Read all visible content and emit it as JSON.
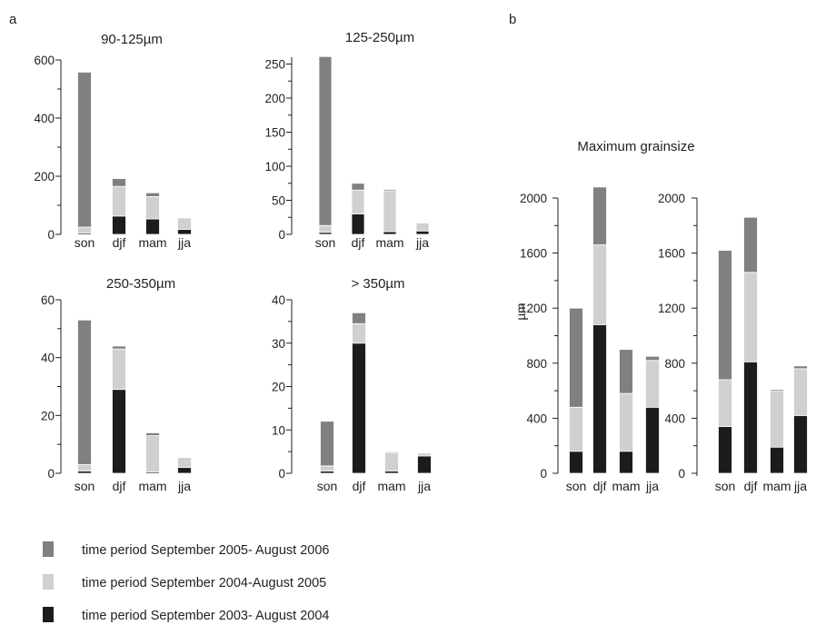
{
  "panel_labels": {
    "a": "a",
    "b": "b"
  },
  "colors": {
    "2005-2006": "#808080",
    "2004-2005": "#d0d0d0",
    "2003-2004": "#1c1c1c"
  },
  "legend": [
    {
      "key": "2005-2006",
      "label": "time period September 2005- August 2006"
    },
    {
      "key": "2004-2005",
      "label": "time period September 2004-August 2005"
    },
    {
      "key": "2003-2004",
      "label": "time period September 2003- August 2004"
    }
  ],
  "chart_data": [
    {
      "id": "c1",
      "type": "bar",
      "stacked": true,
      "title": "90-125µm",
      "categories": [
        "son",
        "djf",
        "mam",
        "jja"
      ],
      "ylim": [
        0,
        600
      ],
      "yticks": [
        0,
        200,
        400,
        600
      ],
      "series": [
        {
          "key": "2003-2004",
          "values": [
            5,
            63,
            53,
            17
          ]
        },
        {
          "key": "2004-2005",
          "values": [
            20,
            102,
            77,
            40
          ]
        },
        {
          "key": "2005-2006",
          "values": [
            533,
            27,
            13,
            2
          ]
        }
      ]
    },
    {
      "id": "c2",
      "type": "bar",
      "stacked": true,
      "title": "125-250µm",
      "categories": [
        "son",
        "djf",
        "mam",
        "jja"
      ],
      "ylim": [
        0,
        260
      ],
      "yticks": [
        0,
        50,
        100,
        150,
        200,
        250
      ],
      "series": [
        {
          "key": "2003-2004",
          "values": [
            3,
            30,
            4,
            5
          ]
        },
        {
          "key": "2004-2005",
          "values": [
            10,
            35,
            60,
            12
          ]
        },
        {
          "key": "2005-2006",
          "values": [
            248,
            10,
            2,
            1
          ]
        }
      ]
    },
    {
      "id": "c3",
      "type": "bar",
      "stacked": true,
      "title": "250-350µm",
      "categories": [
        "son",
        "djf",
        "mam",
        "jja"
      ],
      "ylim": [
        0,
        60
      ],
      "yticks": [
        0,
        20,
        40,
        60
      ],
      "series": [
        {
          "key": "2003-2004",
          "values": [
            0.8,
            29,
            0.5,
            2
          ]
        },
        {
          "key": "2004-2005",
          "values": [
            2.2,
            14,
            12.5,
            3.5
          ]
        },
        {
          "key": "2005-2006",
          "values": [
            50,
            1,
            1,
            0.2
          ]
        }
      ]
    },
    {
      "id": "c4",
      "type": "bar",
      "stacked": true,
      "title": "> 350µm",
      "categories": [
        "son",
        "djf",
        "mam",
        "jja"
      ],
      "ylim": [
        0,
        40
      ],
      "yticks": [
        0,
        10,
        20,
        30,
        40
      ],
      "series": [
        {
          "key": "2003-2004",
          "values": [
            0.5,
            30,
            0.5,
            4
          ]
        },
        {
          "key": "2004-2005",
          "values": [
            1.2,
            4.5,
            4.3,
            0.7
          ]
        },
        {
          "key": "2005-2006",
          "values": [
            10.3,
            2.5,
            0.2,
            0.1
          ]
        }
      ]
    },
    {
      "id": "c5",
      "type": "bar",
      "stacked": true,
      "title": "Maximum grainsize",
      "ylabel": "µm",
      "categories": [
        "son",
        "djf",
        "mam",
        "jja"
      ],
      "ylim": [
        0,
        2000
      ],
      "yticks": [
        0,
        400,
        800,
        1200,
        1600,
        2000
      ],
      "series": [
        {
          "key": "2003-2004",
          "values": [
            160,
            1080,
            160,
            480
          ]
        },
        {
          "key": "2004-2005",
          "values": [
            320,
            580,
            420,
            340
          ]
        },
        {
          "key": "2005-2006",
          "values": [
            720,
            420,
            320,
            30
          ]
        }
      ]
    },
    {
      "id": "c6",
      "type": "bar",
      "stacked": true,
      "categories": [
        "son",
        "djf",
        "mam",
        "jja"
      ],
      "ylim": [
        0,
        2000
      ],
      "yticks": [
        0,
        400,
        800,
        1200,
        1600,
        2000
      ],
      "series": [
        {
          "key": "2003-2004",
          "values": [
            340,
            810,
            190,
            420
          ]
        },
        {
          "key": "2004-2005",
          "values": [
            340,
            650,
            410,
            340
          ]
        },
        {
          "key": "2005-2006",
          "values": [
            940,
            400,
            10,
            20
          ]
        }
      ]
    }
  ]
}
